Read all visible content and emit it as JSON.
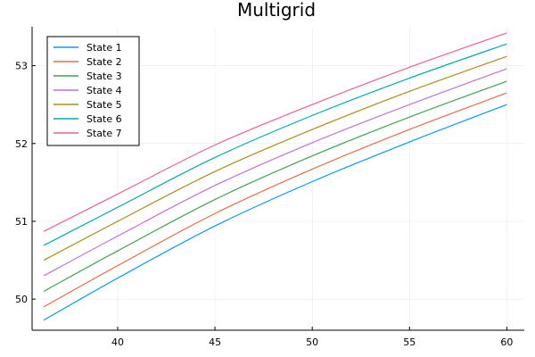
{
  "chart_data": {
    "type": "line",
    "title": "Multigrid",
    "xlabel": "",
    "ylabel": "",
    "xlim": [
      35.6,
      60.9
    ],
    "ylim": [
      49.6,
      53.5
    ],
    "xticks": [
      40,
      45,
      50,
      55,
      60
    ],
    "yticks": [
      50,
      51,
      52,
      53
    ],
    "grid": true,
    "legend_position": "top-left",
    "series": [
      {
        "name": "State 1",
        "color": "#009AFA",
        "x": [
          36.2,
          40,
          45,
          50,
          55,
          60
        ],
        "y": [
          49.73,
          50.27,
          50.94,
          51.51,
          52.02,
          52.5
        ]
      },
      {
        "name": "State 2",
        "color": "#E36F47",
        "x": [
          36.2,
          40,
          45,
          50,
          55,
          60
        ],
        "y": [
          49.9,
          50.43,
          51.1,
          51.67,
          52.18,
          52.65
        ]
      },
      {
        "name": "State 3",
        "color": "#3EA44E",
        "x": [
          36.2,
          40,
          45,
          50,
          55,
          60
        ],
        "y": [
          50.1,
          50.62,
          51.28,
          51.84,
          52.34,
          52.8
        ]
      },
      {
        "name": "State 4",
        "color": "#C371D2",
        "x": [
          36.2,
          40,
          45,
          50,
          55,
          60
        ],
        "y": [
          50.3,
          50.81,
          51.46,
          52.01,
          52.5,
          52.96
        ]
      },
      {
        "name": "State 5",
        "color": "#AC8D18",
        "x": [
          36.2,
          40,
          45,
          50,
          55,
          60
        ],
        "y": [
          50.5,
          51.0,
          51.64,
          52.18,
          52.67,
          53.12
        ]
      },
      {
        "name": "State 6",
        "color": "#00A9AD",
        "x": [
          36.2,
          40,
          45,
          50,
          55,
          60
        ],
        "y": [
          50.69,
          51.18,
          51.82,
          52.36,
          52.84,
          53.28
        ]
      },
      {
        "name": "State 7",
        "color": "#ED5E93",
        "x": [
          36.2,
          40,
          45,
          50,
          55,
          60
        ],
        "y": [
          50.87,
          51.35,
          51.98,
          52.5,
          52.98,
          53.42
        ]
      }
    ]
  }
}
